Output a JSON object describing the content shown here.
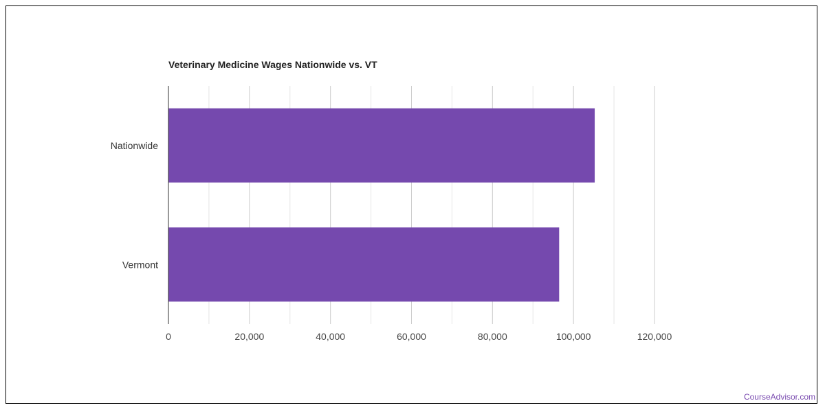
{
  "chart_data": {
    "type": "bar",
    "orientation": "horizontal",
    "title": "Veterinary Medicine Wages Nationwide vs. VT",
    "categories": [
      "Nationwide",
      "Vermont"
    ],
    "values": [
      105240,
      96460
    ],
    "xlim": [
      0,
      120000
    ],
    "x_ticks": [
      0,
      10000,
      20000,
      30000,
      40000,
      50000,
      60000,
      70000,
      80000,
      90000,
      100000,
      110000,
      120000
    ],
    "x_tick_labels": [
      "0",
      "20,000",
      "40,000",
      "60,000",
      "80,000",
      "100,000",
      "120,000"
    ],
    "x_tick_label_values": [
      0,
      20000,
      40000,
      60000,
      80000,
      100000,
      120000
    ],
    "xlabel": "",
    "ylabel": "",
    "grid": true,
    "bar_color": "#7549ae"
  },
  "footer": {
    "watermark": "CourseAdvisor.com"
  }
}
